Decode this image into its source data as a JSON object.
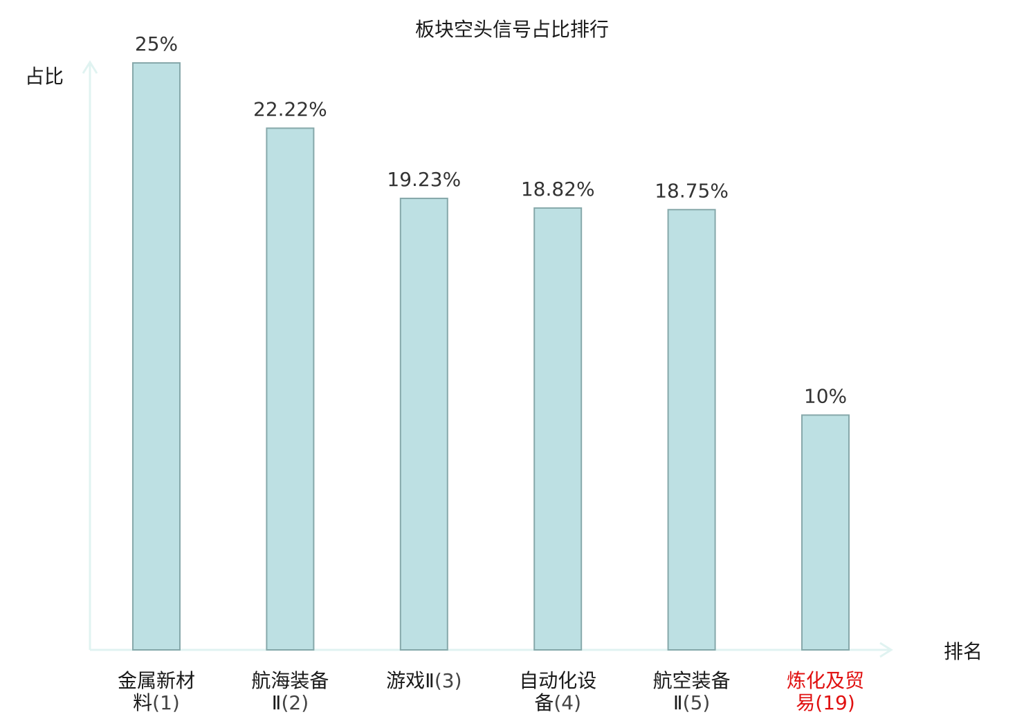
{
  "title": "板块空头信号占比排行",
  "colors": {
    "bar_fill": "#bde0e3",
    "bar_stroke": "#86a8aa",
    "axis": "#e0f3f1",
    "highlight": "#e01010"
  },
  "chart_data": {
    "type": "bar",
    "title": "板块空头信号占比排行",
    "ylabel": "占比",
    "xlabel": "排名",
    "ylim": [
      0,
      25
    ],
    "grid": false,
    "categories": [
      {
        "lines": [
          "金属新材",
          "料"
        ],
        "rank": "(1)",
        "highlight": false
      },
      {
        "lines": [
          "航海装备",
          "Ⅱ"
        ],
        "rank": "(2)",
        "highlight": false
      },
      {
        "lines": [
          "游戏Ⅱ"
        ],
        "rank": "(3)",
        "highlight": false
      },
      {
        "lines": [
          "自动化设",
          "备"
        ],
        "rank": "(4)",
        "highlight": false
      },
      {
        "lines": [
          "航空装备",
          "Ⅱ"
        ],
        "rank": "(5)",
        "highlight": false
      },
      {
        "lines": [
          "炼化及贸",
          "易"
        ],
        "rank": "(19)",
        "highlight": true
      }
    ],
    "values": [
      25,
      22.22,
      19.23,
      18.82,
      18.75,
      10
    ],
    "value_labels": [
      "25%",
      "22.22%",
      "19.23%",
      "18.82%",
      "18.75%",
      "10%"
    ]
  }
}
